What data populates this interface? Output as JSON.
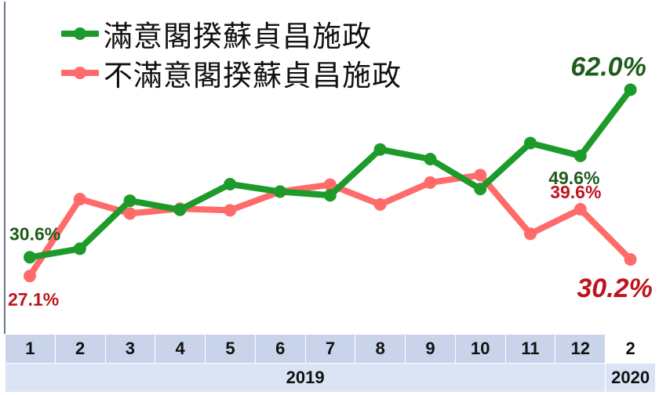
{
  "chart_data": {
    "type": "line",
    "categories": [
      "1",
      "2",
      "3",
      "4",
      "5",
      "6",
      "7",
      "8",
      "9",
      "10",
      "11",
      "12",
      "2"
    ],
    "years": [
      {
        "label": "2019",
        "span": 12
      },
      {
        "label": "2020",
        "span": 1
      }
    ],
    "series": [
      {
        "name": "滿意閣揆蘇貞昌施政",
        "color": "#1d9a2a",
        "label_color": "#1e5c1a",
        "values": [
          30.6,
          32.2,
          41.2,
          39.5,
          44.3,
          42.9,
          42.2,
          50.8,
          49.0,
          43.4,
          52.0,
          49.6,
          62.0
        ]
      },
      {
        "name": "不滿意閣揆蘇貞昌施政",
        "color": "#ff6b6b",
        "label_color": "#c0141c",
        "values": [
          27.1,
          41.5,
          38.8,
          39.7,
          39.4,
          42.9,
          44.2,
          40.5,
          44.6,
          46.0,
          35.0,
          39.6,
          30.2
        ]
      }
    ],
    "data_labels": [
      {
        "series": 0,
        "index": 0,
        "text": "30.6%"
      },
      {
        "series": 1,
        "index": 0,
        "text": "27.1%"
      },
      {
        "series": 0,
        "index": 11,
        "text": "49.6%"
      },
      {
        "series": 1,
        "index": 11,
        "text": "39.6%"
      },
      {
        "series": 0,
        "index": 12,
        "text": "62.0%"
      },
      {
        "series": 1,
        "index": 12,
        "text": "30.2%"
      }
    ],
    "ylim": [
      23,
      70
    ],
    "grid": false,
    "legend_position": "top-left"
  }
}
